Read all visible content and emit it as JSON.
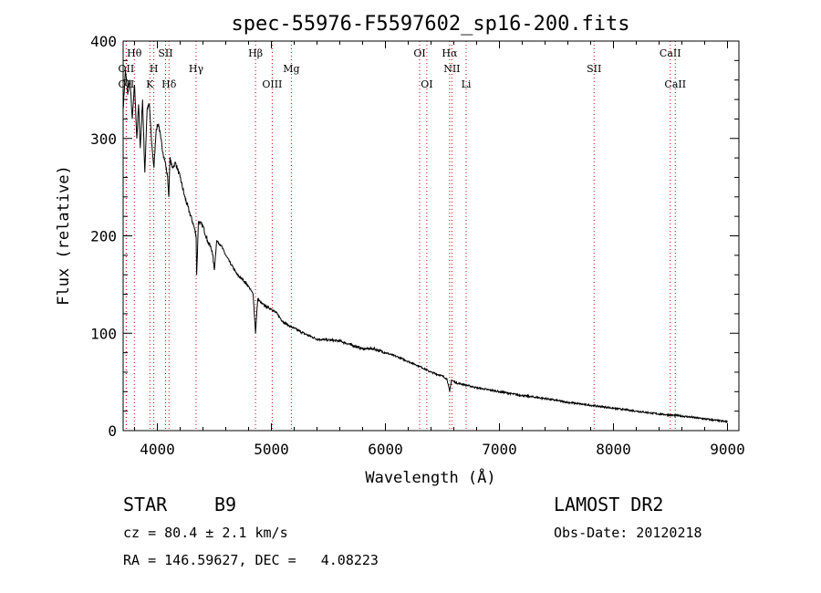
{
  "chart_data": {
    "type": "line",
    "title": "spec-55976-F5597602_sp16-200.fits",
    "xlabel": "Wavelength (Å)",
    "ylabel": "Flux (relative)",
    "xlim": [
      3700,
      9100
    ],
    "ylim": [
      0,
      400
    ],
    "xticks": [
      4000,
      5000,
      6000,
      7000,
      8000,
      9000
    ],
    "yticks": [
      0,
      100,
      200,
      300,
      400
    ],
    "grid": false,
    "line_color": "#000000",
    "marker_color": "#cc0000",
    "series": [
      {
        "x": [
          3700,
          3720,
          3740,
          3760,
          3780,
          3800,
          3820,
          3835,
          3850,
          3870,
          3890,
          3910,
          3930,
          3950,
          3970,
          3990,
          4010,
          4030,
          4050,
          4070,
          4090,
          4101,
          4110,
          4130,
          4160,
          4200,
          4240,
          4280,
          4320,
          4340,
          4345,
          4360,
          4400,
          4440,
          4480,
          4500,
          4520,
          4560,
          4600,
          4650,
          4700,
          4750,
          4800,
          4840,
          4861,
          4880,
          4920,
          4960,
          5000,
          5050,
          5100,
          5150,
          5200,
          5300,
          5400,
          5500,
          5600,
          5700,
          5800,
          5900,
          6000,
          6100,
          6200,
          6300,
          6400,
          6500,
          6540,
          6563,
          6580,
          6620,
          6700,
          6800,
          6900,
          7000,
          7200,
          7400,
          7600,
          7800,
          8000,
          8200,
          8400,
          8600,
          8800,
          9000
        ],
        "y": [
          330,
          370,
          345,
          360,
          320,
          355,
          300,
          335,
          290,
          340,
          265,
          330,
          335,
          295,
          270,
          310,
          315,
          300,
          285,
          275,
          260,
          240,
          280,
          270,
          275,
          260,
          240,
          225,
          210,
          200,
          160,
          215,
          210,
          195,
          185,
          165,
          195,
          190,
          180,
          170,
          160,
          155,
          148,
          140,
          100,
          135,
          130,
          127,
          125,
          120,
          112,
          108,
          105,
          99,
          94,
          93,
          92,
          88,
          84,
          84,
          80,
          76,
          71,
          66,
          60,
          56,
          53,
          40,
          52,
          49,
          47,
          44,
          42,
          40,
          36,
          33,
          29,
          26,
          23,
          20,
          17,
          15,
          12,
          9
        ]
      }
    ],
    "lines": [
      {
        "label": "Hθ",
        "x": 3798,
        "row": 1
      },
      {
        "label": "OII",
        "x": 3727,
        "row": 2
      },
      {
        "label": "OII",
        "x": 3727,
        "row": 3
      },
      {
        "label": "K",
        "x": 3934,
        "row": 3
      },
      {
        "label": "H",
        "x": 3969,
        "row": 2
      },
      {
        "label": "SII",
        "x": 4072,
        "row": 1
      },
      {
        "label": "Hδ",
        "x": 4102,
        "row": 3
      },
      {
        "label": "Hγ",
        "x": 4340,
        "row": 2
      },
      {
        "label": "Hβ",
        "x": 4861,
        "row": 1
      },
      {
        "label": "OIII",
        "x": 5007,
        "row": 3
      },
      {
        "label": "Mg",
        "x": 5175,
        "row": 2
      },
      {
        "label": "OI",
        "x": 6300,
        "row": 1
      },
      {
        "label": "OI",
        "x": 6363,
        "row": 3
      },
      {
        "label": "Hα",
        "x": 6563,
        "row": 1
      },
      {
        "label": "NII",
        "x": 6583,
        "row": 2
      },
      {
        "label": "Li",
        "x": 6708,
        "row": 3
      },
      {
        "label": "SII",
        "x": 7830,
        "row": 2
      },
      {
        "label": "CaII",
        "x": 8498,
        "row": 1
      },
      {
        "label": "CaII",
        "x": 8542,
        "row": 3
      }
    ]
  },
  "info": {
    "class": "STAR",
    "subclass": "B9",
    "survey": "LAMOST DR2",
    "cz": "cz = 80.4 ± 2.1 km/s",
    "obsdate": "Obs-Date: 20120218",
    "coords": "RA = 146.59627, DEC =   4.08223"
  }
}
